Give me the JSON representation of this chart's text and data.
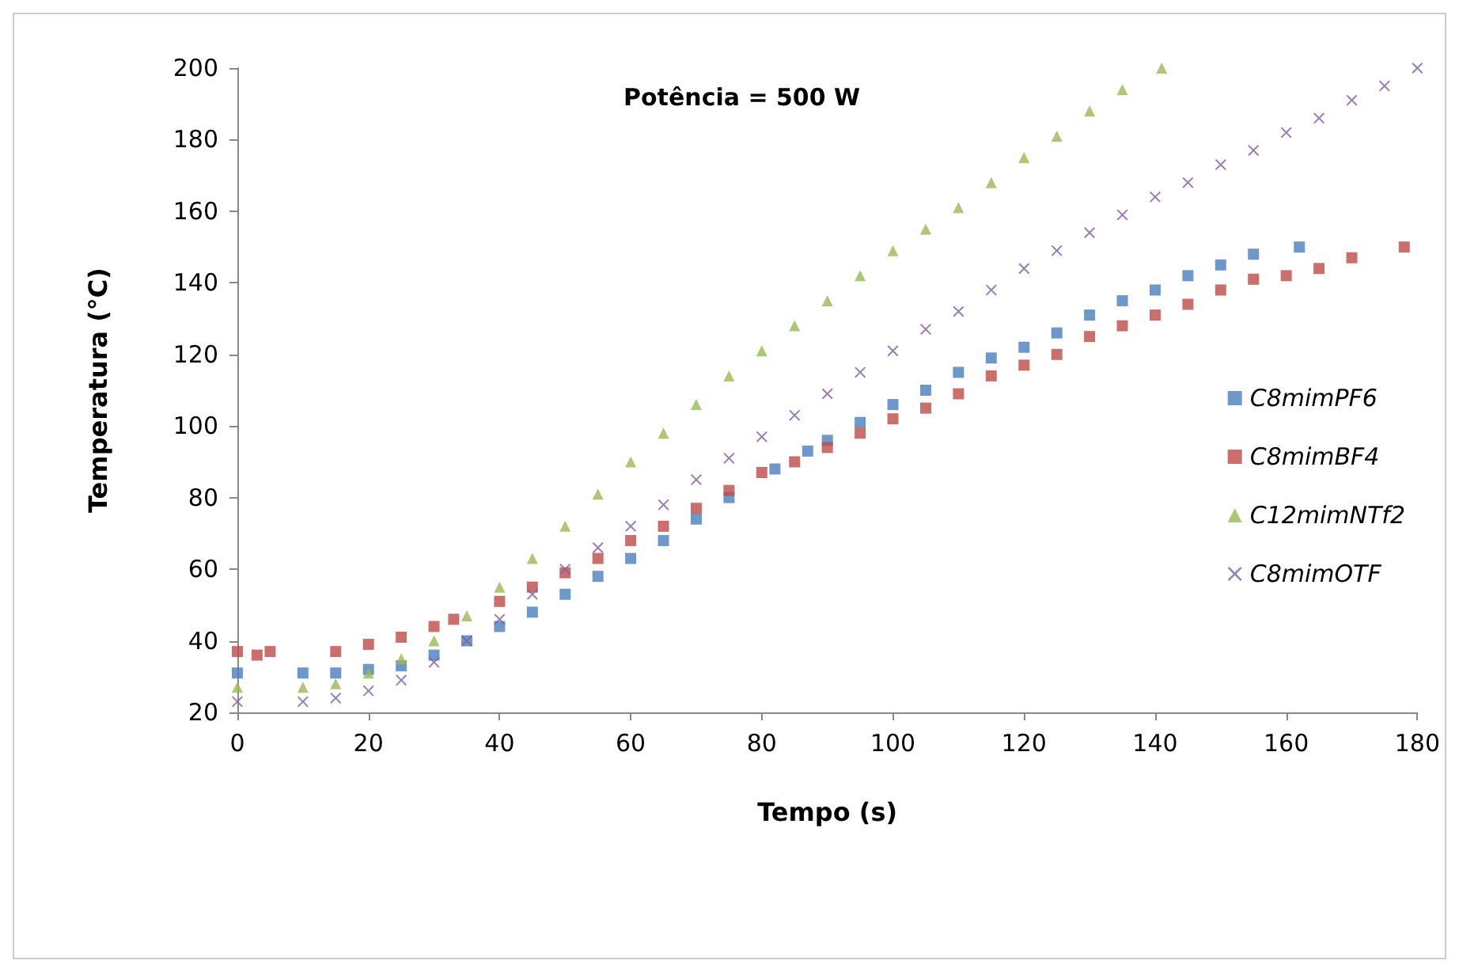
{
  "chart_data": {
    "type": "scatter",
    "title": "Potência = 500 W",
    "xlabel": "Tempo (s)",
    "ylabel": "Temperatura (°C)",
    "xlim": [
      0,
      180
    ],
    "xticks": [
      0,
      20,
      40,
      60,
      80,
      100,
      120,
      140,
      160,
      180
    ],
    "ylim": [
      20,
      200
    ],
    "yticks": [
      20,
      40,
      60,
      80,
      100,
      120,
      140,
      160,
      180,
      200
    ],
    "grid": false,
    "legend": "right",
    "series": [
      {
        "name": "C8mimPF6",
        "color": "#4a7ebb",
        "marker": "square",
        "x": [
          0,
          10,
          15,
          20,
          25,
          30,
          35,
          40,
          45,
          50,
          55,
          60,
          65,
          70,
          75,
          82,
          87,
          90,
          95,
          100,
          105,
          110,
          115,
          120,
          125,
          130,
          135,
          140,
          145,
          150,
          155,
          162
        ],
        "values": [
          31,
          31,
          31,
          32,
          33,
          36,
          40,
          44,
          48,
          53,
          58,
          63,
          68,
          74,
          80,
          88,
          93,
          96,
          101,
          106,
          110,
          115,
          119,
          122,
          126,
          131,
          135,
          138,
          142,
          145,
          148,
          150
        ]
      },
      {
        "name": "C8mimBF4",
        "color": "#be4b48",
        "marker": "square",
        "x": [
          0,
          3,
          5,
          15,
          20,
          25,
          30,
          33,
          40,
          45,
          50,
          55,
          60,
          65,
          70,
          75,
          80,
          85,
          90,
          95,
          100,
          105,
          110,
          115,
          120,
          125,
          130,
          135,
          140,
          145,
          150,
          155,
          160,
          165,
          170,
          178
        ],
        "values": [
          37,
          36,
          37,
          37,
          39,
          41,
          44,
          46,
          51,
          55,
          59,
          63,
          68,
          72,
          77,
          82,
          87,
          90,
          94,
          98,
          102,
          105,
          109,
          114,
          117,
          120,
          125,
          128,
          131,
          134,
          138,
          141,
          142,
          144,
          147,
          150
        ]
      },
      {
        "name": "C12mimNTf2",
        "color": "#98b954",
        "marker": "triangle",
        "x": [
          0,
          10,
          15,
          20,
          25,
          30,
          35,
          40,
          45,
          50,
          55,
          60,
          65,
          70,
          75,
          80,
          85,
          90,
          95,
          100,
          105,
          110,
          115,
          120,
          125,
          130,
          135,
          141
        ],
        "values": [
          27,
          27,
          28,
          31,
          35,
          40,
          47,
          55,
          63,
          72,
          81,
          90,
          98,
          106,
          114,
          121,
          128,
          135,
          142,
          149,
          155,
          161,
          168,
          175,
          181,
          188,
          194,
          200
        ]
      },
      {
        "name": "C8mimOTF",
        "color": "#7d5fa0",
        "marker": "cross",
        "x": [
          0,
          10,
          15,
          20,
          25,
          30,
          35,
          40,
          45,
          50,
          55,
          60,
          65,
          70,
          75,
          80,
          85,
          90,
          95,
          100,
          105,
          110,
          115,
          120,
          125,
          130,
          135,
          140,
          145,
          150,
          155,
          160,
          165,
          170,
          175,
          180
        ],
        "values": [
          23,
          23,
          24,
          26,
          29,
          34,
          40,
          46,
          53,
          60,
          66,
          72,
          78,
          85,
          91,
          97,
          103,
          109,
          115,
          121,
          127,
          132,
          138,
          144,
          149,
          154,
          159,
          164,
          168,
          173,
          177,
          182,
          186,
          191,
          195,
          200
        ]
      }
    ]
  }
}
